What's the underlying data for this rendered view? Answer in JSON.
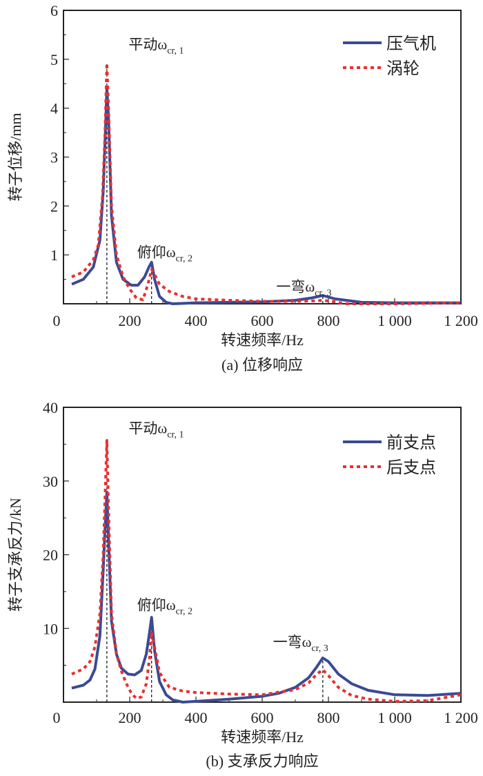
{
  "chart_data": [
    {
      "type": "line",
      "caption": "(a) 位移响应",
      "xlabel": "转速频率/Hz",
      "ylabel": "转子位移/mm",
      "xlim": [
        0,
        1200
      ],
      "ylim": [
        0,
        6
      ],
      "xticks": [
        "0",
        "200",
        "400",
        "600",
        "800",
        "1 000",
        "1 200"
      ],
      "yticks": [
        "0",
        "1",
        "2",
        "3",
        "4",
        "5",
        "6"
      ],
      "legend_position": "top-right",
      "grid": false,
      "critical_speeds": [
        131,
        266,
        783
      ],
      "annotations": [
        {
          "text": "平动ω",
          "sub": "cr, 1",
          "x": 30,
          "y": 5.2
        },
        {
          "text": "俯仰ω",
          "sub": "cr, 2",
          "x": 160,
          "y": 0.95
        },
        {
          "text": "一弯ω",
          "sub": "cr, 3",
          "x": 580,
          "y": 0.25
        }
      ],
      "series": [
        {
          "name": "压气机",
          "color": "#3b4a94",
          "style": "solid",
          "x": [
            25,
            60,
            90,
            110,
            120,
            127,
            131,
            136,
            145,
            160,
            180,
            205,
            225,
            245,
            258,
            266,
            275,
            290,
            310,
            330,
            400,
            500,
            600,
            700,
            750,
            783,
            820,
            900,
            1000,
            1100,
            1200
          ],
          "y": [
            0.4,
            0.5,
            0.75,
            1.3,
            2.3,
            3.6,
            4.4,
            3.8,
            1.8,
            0.85,
            0.5,
            0.38,
            0.38,
            0.55,
            0.75,
            0.85,
            0.5,
            0.15,
            0.03,
            0.0,
            0.02,
            0.03,
            0.04,
            0.07,
            0.12,
            0.17,
            0.1,
            0.03,
            0.02,
            0.02,
            0.02
          ]
        },
        {
          "name": "涡轮",
          "color": "#e8302f",
          "style": "dotted",
          "x": [
            25,
            60,
            90,
            105,
            118,
            125,
            131,
            136,
            145,
            160,
            180,
            200,
            220,
            240,
            255,
            266,
            275,
            290,
            320,
            360,
            400,
            500,
            600,
            700,
            760,
            783,
            820,
            850,
            1000,
            1100,
            1200
          ],
          "y": [
            0.55,
            0.65,
            0.9,
            1.2,
            2.2,
            3.4,
            4.92,
            4.0,
            2.0,
            1.0,
            0.55,
            0.3,
            0.12,
            0.08,
            0.4,
            0.7,
            0.6,
            0.4,
            0.25,
            0.15,
            0.1,
            0.07,
            0.05,
            0.05,
            0.06,
            0.07,
            0.04,
            0.0,
            0.0,
            0.01,
            0.02
          ]
        }
      ]
    },
    {
      "type": "line",
      "caption": "(b) 支承反力响应",
      "xlabel": "转速频率/Hz",
      "ylabel": "转子支承反力/kN",
      "xlim": [
        0,
        1200
      ],
      "ylim": [
        0,
        40
      ],
      "xticks": [
        "0",
        "200",
        "400",
        "600",
        "800",
        "1 000",
        "1 200"
      ],
      "yticks": [
        "10",
        "20",
        "30",
        "40"
      ],
      "yticks_zero": "0",
      "legend_position": "top-right",
      "grid": false,
      "critical_speeds": [
        131,
        266,
        783
      ],
      "annotations": [
        {
          "text": "平动ω",
          "sub": "cr, 1",
          "x": 30,
          "y": 36.5
        },
        {
          "text": "俯仰ω",
          "sub": "cr, 2",
          "x": 160,
          "y": 12.5
        },
        {
          "text": "一弯ω",
          "sub": "cr, 3",
          "x": 570,
          "y": 7.5
        }
      ],
      "series": [
        {
          "name": "前支点",
          "color": "#3b4a94",
          "style": "solid",
          "x": [
            25,
            60,
            80,
            95,
            110,
            120,
            127,
            131,
            136,
            145,
            160,
            175,
            195,
            215,
            235,
            250,
            260,
            266,
            275,
            290,
            310,
            330,
            360,
            400,
            500,
            600,
            650,
            700,
            740,
            765,
            783,
            800,
            830,
            870,
            920,
            1000,
            1100,
            1200
          ],
          "y": [
            1.9,
            2.3,
            3.0,
            4.5,
            9.0,
            18,
            25,
            28.5,
            22,
            11,
            6.5,
            4.6,
            3.8,
            3.7,
            4.3,
            6.5,
            9.5,
            11.5,
            7,
            2.8,
            1.0,
            0.3,
            0.0,
            0.1,
            0.4,
            0.8,
            1.2,
            2.0,
            3.3,
            4.8,
            6.0,
            5.5,
            3.8,
            2.5,
            1.6,
            1.0,
            0.9,
            1.2
          ]
        },
        {
          "name": "后支点",
          "color": "#e8302f",
          "style": "dotted",
          "x": [
            25,
            60,
            80,
            95,
            110,
            120,
            127,
            131,
            136,
            145,
            160,
            175,
            190,
            205,
            220,
            235,
            250,
            260,
            266,
            275,
            290,
            320,
            360,
            400,
            500,
            600,
            700,
            740,
            765,
            783,
            800,
            830,
            870,
            920,
            1000,
            1100,
            1200
          ],
          "y": [
            3.8,
            4.5,
            5.5,
            7.5,
            12,
            20,
            30,
            35.5,
            26,
            12,
            6.5,
            4.2,
            2.5,
            1.2,
            0.5,
            0.7,
            2.5,
            6,
            9.5,
            7.5,
            4,
            2.0,
            1.5,
            1.3,
            1.1,
            1.0,
            1.7,
            2.6,
            3.8,
            4.4,
            3.6,
            2.0,
            0.9,
            0.4,
            0.1,
            0.2,
            1.0
          ]
        }
      ]
    }
  ]
}
